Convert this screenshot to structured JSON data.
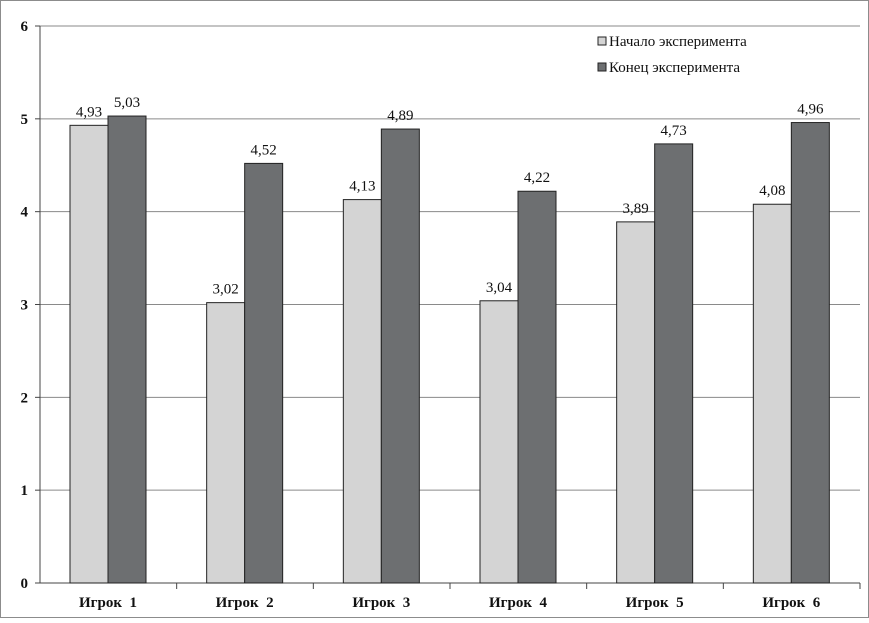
{
  "chart_data": {
    "type": "bar",
    "categories": [
      "Игрок  1",
      "Игрок  2",
      "Игрок  3",
      "Игрок  4",
      "Игрок  5",
      "Игрок  6"
    ],
    "series": [
      {
        "name": "Начало эксперимента",
        "color": "#d4d4d4",
        "values": [
          4.93,
          3.02,
          4.13,
          3.04,
          3.89,
          4.08
        ],
        "labels": [
          "4,93",
          "3,02",
          "4,13",
          "3,04",
          "3,89",
          "4,08"
        ]
      },
      {
        "name": "Конец эксперимента",
        "color": "#6d6f71",
        "values": [
          5.03,
          4.52,
          4.89,
          4.22,
          4.73,
          4.96
        ],
        "labels": [
          "5,03",
          "4,52",
          "4,89",
          "4,22",
          "4,73",
          "4,96"
        ]
      }
    ],
    "yticks": [
      0,
      1,
      2,
      3,
      4,
      5,
      6
    ],
    "ylim": [
      0,
      6
    ],
    "grid": true,
    "legend_position": "top-right",
    "title": "",
    "xlabel": "",
    "ylabel": ""
  }
}
